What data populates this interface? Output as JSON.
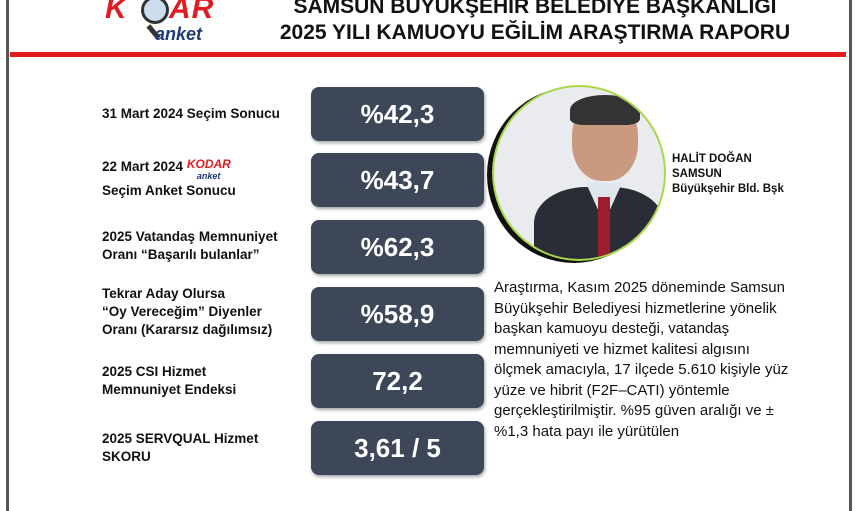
{
  "header": {
    "logo_text": "KODAR anket",
    "title_line1": "SAMSUN BÜYÜKŞEHİR BELEDİYE BAŞKANLIĞI",
    "title_line2": "2025 YILI KAMUOYU EĞİLİM ARAŞTIRMA RAPORU",
    "accent_color": "#e31b1b"
  },
  "metrics": [
    {
      "label_lines": [
        "31 Mart 2024 Seçim Sonucu"
      ],
      "value": "%42,3"
    },
    {
      "label_lines": [
        "22 Mart 2024",
        "Seçim Anket Sonucu"
      ],
      "logo_text": "KODAR anket",
      "value": "%43,7"
    },
    {
      "label_lines": [
        "2025 Vatandaş Memnuniyet",
        "Oranı “Başarılı bulanlar”"
      ],
      "value": "%62,3"
    },
    {
      "label_lines": [
        "Tekrar Aday Olursa",
        "“Oy Vereceğim” Diyenler",
        "Oranı (Kararsız dağılımsız)"
      ],
      "value": "%58,9"
    },
    {
      "label_lines": [
        "2025 CSI Hizmet",
        "Memnuniyet Endeksi"
      ],
      "value": "72,2"
    },
    {
      "label_lines": [
        "2025 SERVQUAL Hizmet",
        "SKORU"
      ],
      "value": "3,61 / 5"
    }
  ],
  "mayor": {
    "name": "HALİT DOĞAN",
    "line2": "SAMSUN",
    "line3": "Büyükşehir Bld. Bşk"
  },
  "description": "Araştırma, Kasım 2025 döneminde Samsun Büyükşehir Belediyesi hizmetlerine yönelik başkan kamuoyu desteği, vatandaş memnuniyeti ve hizmet kalitesi algısını ölçmek amacıyla, 17 ilçede 5.610 kişiyle yüz yüze ve hibrit (F2F–CATI) yöntemle gerçekleştirilmiştir. %95 güven aralığı ve ±%1,3 hata payı ile yürütülen",
  "box_color": "#3d4757"
}
